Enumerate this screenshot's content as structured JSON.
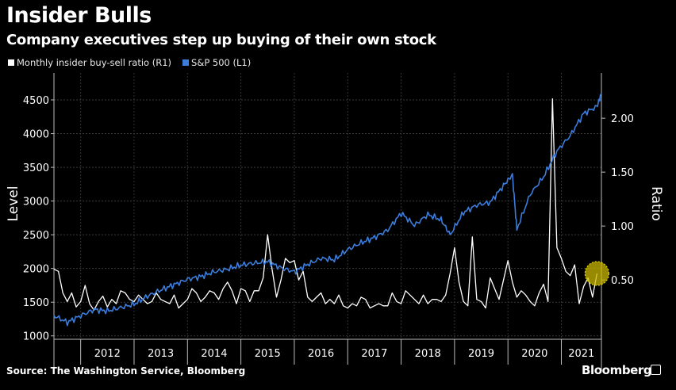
{
  "header": {
    "title": "Insider Bulls",
    "subtitle": "Company executives step up buying of their own stock"
  },
  "legend": {
    "items": [
      {
        "label": "Monthly insider buy-sell ratio (R1)",
        "color": "#ffffff"
      },
      {
        "label": "S&P 500 (L1)",
        "color": "#3b7ddd"
      }
    ]
  },
  "footer": {
    "source": "Source: The Washington Service, Bloomberg",
    "brand": "Bloomberg"
  },
  "colors": {
    "background": "#000000",
    "sp500": "#3b7ddd",
    "ratio": "#ffffff",
    "highlight": "#c9b800"
  },
  "chart_data": {
    "type": "line",
    "x_axis": {
      "tick_labels": [
        "2012",
        "2013",
        "2014",
        "2015",
        "2016",
        "2017",
        "2018",
        "2019",
        "2020",
        "2021"
      ],
      "range": [
        "2011-07",
        "2021-10"
      ]
    },
    "left_axis": {
      "label": "Level",
      "ticks": [
        1000,
        1500,
        2000,
        2500,
        3000,
        3500,
        4000,
        4500
      ],
      "tick_labels": [
        "1000",
        "1500",
        "2000",
        "2500",
        "3000",
        "3500",
        "4000",
        "4500"
      ],
      "range": [
        950,
        4900
      ]
    },
    "right_axis": {
      "label": "Ratio",
      "ticks": [
        0.5,
        1.0,
        1.5,
        2.0
      ],
      "tick_labels": [
        "0.50",
        "1.00",
        "1.50",
        "2.00"
      ],
      "range": [
        -0.05,
        2.42
      ]
    },
    "grid": true,
    "legend_position": "top-left",
    "highlight": {
      "date": "2021-09",
      "value": 0.56
    },
    "series": [
      {
        "name": "S&P 500 (L1)",
        "axis": "left",
        "x": [
          "2011-07",
          "2011-10",
          "2012-01",
          "2012-04",
          "2012-07",
          "2012-10",
          "2013-01",
          "2013-04",
          "2013-07",
          "2013-10",
          "2014-01",
          "2014-04",
          "2014-07",
          "2014-10",
          "2015-01",
          "2015-04",
          "2015-07",
          "2015-10",
          "2016-01",
          "2016-04",
          "2016-07",
          "2016-10",
          "2017-01",
          "2017-04",
          "2017-07",
          "2017-10",
          "2018-01",
          "2018-04",
          "2018-07",
          "2018-10",
          "2018-12",
          "2019-03",
          "2019-06",
          "2019-09",
          "2019-12",
          "2020-02",
          "2020-03",
          "2020-06",
          "2020-09",
          "2020-12",
          "2021-03",
          "2021-06",
          "2021-09",
          "2021-10"
        ],
        "values": [
          1300,
          1200,
          1300,
          1390,
          1370,
          1420,
          1470,
          1590,
          1680,
          1760,
          1840,
          1880,
          1950,
          1990,
          2050,
          2080,
          2100,
          2010,
          1950,
          2060,
          2150,
          2130,
          2280,
          2380,
          2460,
          2570,
          2820,
          2640,
          2800,
          2720,
          2500,
          2830,
          2940,
          2980,
          3230,
          3390,
          2580,
          3100,
          3360,
          3740,
          3970,
          4300,
          4400,
          4600
        ],
        "color": "#3b7ddd"
      },
      {
        "name": "Monthly insider buy-sell ratio (R1)",
        "axis": "right",
        "x": [
          "2011-07",
          "2011-08",
          "2011-09",
          "2011-10",
          "2011-11",
          "2011-12",
          "2012-01",
          "2012-02",
          "2012-03",
          "2012-04",
          "2012-05",
          "2012-06",
          "2012-07",
          "2012-08",
          "2012-09",
          "2012-10",
          "2012-11",
          "2012-12",
          "2013-01",
          "2013-02",
          "2013-03",
          "2013-04",
          "2013-05",
          "2013-06",
          "2013-07",
          "2013-08",
          "2013-09",
          "2013-10",
          "2013-11",
          "2013-12",
          "2014-01",
          "2014-02",
          "2014-03",
          "2014-04",
          "2014-05",
          "2014-06",
          "2014-07",
          "2014-08",
          "2014-09",
          "2014-10",
          "2014-11",
          "2014-12",
          "2015-01",
          "2015-02",
          "2015-03",
          "2015-04",
          "2015-05",
          "2015-06",
          "2015-07",
          "2015-08",
          "2015-09",
          "2015-10",
          "2015-11",
          "2015-12",
          "2016-01",
          "2016-02",
          "2016-03",
          "2016-04",
          "2016-05",
          "2016-06",
          "2016-07",
          "2016-08",
          "2016-09",
          "2016-10",
          "2016-11",
          "2016-12",
          "2017-01",
          "2017-02",
          "2017-03",
          "2017-04",
          "2017-05",
          "2017-06",
          "2017-07",
          "2017-08",
          "2017-09",
          "2017-10",
          "2017-11",
          "2017-12",
          "2018-01",
          "2018-02",
          "2018-03",
          "2018-04",
          "2018-05",
          "2018-06",
          "2018-07",
          "2018-08",
          "2018-09",
          "2018-10",
          "2018-11",
          "2018-12",
          "2019-01",
          "2019-02",
          "2019-03",
          "2019-04",
          "2019-05",
          "2019-06",
          "2019-07",
          "2019-08",
          "2019-09",
          "2019-10",
          "2019-11",
          "2019-12",
          "2020-01",
          "2020-02",
          "2020-03",
          "2020-04",
          "2020-05",
          "2020-06",
          "2020-07",
          "2020-08",
          "2020-09",
          "2020-10",
          "2020-11",
          "2020-12",
          "2021-01",
          "2021-02",
          "2021-03",
          "2021-04",
          "2021-05",
          "2021-06",
          "2021-07",
          "2021-08",
          "2021-09"
        ],
        "values": [
          0.6,
          0.58,
          0.38,
          0.3,
          0.38,
          0.25,
          0.3,
          0.45,
          0.28,
          0.22,
          0.3,
          0.35,
          0.25,
          0.32,
          0.28,
          0.4,
          0.38,
          0.32,
          0.3,
          0.36,
          0.32,
          0.28,
          0.3,
          0.38,
          0.32,
          0.3,
          0.28,
          0.36,
          0.24,
          0.28,
          0.32,
          0.42,
          0.38,
          0.3,
          0.34,
          0.4,
          0.38,
          0.32,
          0.42,
          0.48,
          0.4,
          0.28,
          0.42,
          0.4,
          0.3,
          0.4,
          0.4,
          0.52,
          0.92,
          0.6,
          0.34,
          0.5,
          0.7,
          0.66,
          0.68,
          0.5,
          0.58,
          0.34,
          0.3,
          0.34,
          0.38,
          0.28,
          0.32,
          0.28,
          0.36,
          0.26,
          0.24,
          0.28,
          0.26,
          0.34,
          0.32,
          0.24,
          0.26,
          0.28,
          0.26,
          0.26,
          0.38,
          0.3,
          0.28,
          0.4,
          0.36,
          0.32,
          0.28,
          0.36,
          0.28,
          0.32,
          0.32,
          0.3,
          0.36,
          0.56,
          0.8,
          0.48,
          0.3,
          0.26,
          0.9,
          0.32,
          0.3,
          0.24,
          0.52,
          0.42,
          0.32,
          0.5,
          0.68,
          0.48,
          0.34,
          0.4,
          0.36,
          0.3,
          0.26,
          0.38,
          0.46,
          0.3,
          2.18,
          0.8,
          0.7,
          0.58,
          0.54,
          0.64,
          0.28,
          0.44,
          0.52,
          0.34,
          0.56
        ]
      }
    ]
  }
}
